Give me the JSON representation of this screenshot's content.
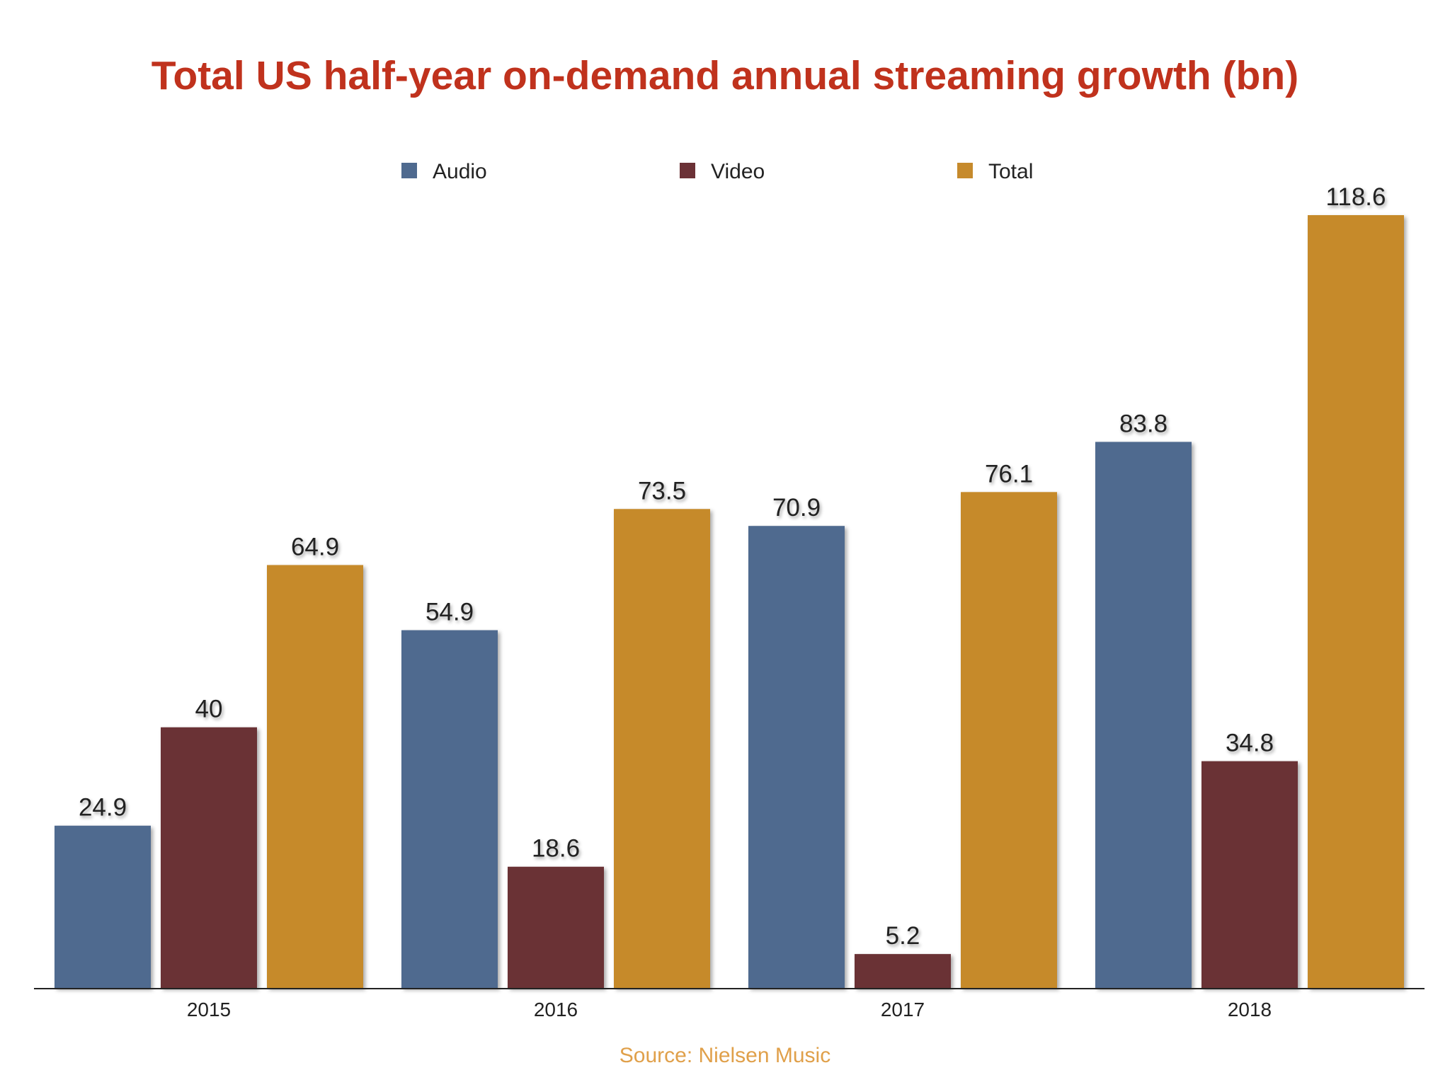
{
  "chart_data": {
    "type": "bar",
    "title": "Total US half-year on-demand annual streaming growth (bn)",
    "categories": [
      "2015",
      "2016",
      "2017",
      "2018"
    ],
    "series": [
      {
        "name": "Audio",
        "values": [
          24.9,
          54.9,
          70.9,
          83.8
        ],
        "color": "#4f6a8f"
      },
      {
        "name": "Video",
        "values": [
          40,
          18.6,
          5.2,
          34.8
        ],
        "color": "#6b3136"
      },
      {
        "name": "Total",
        "values": [
          64.9,
          73.5,
          76.1,
          118.6
        ],
        "color": "#c68a2c"
      }
    ],
    "value_labels": [
      [
        "24.9",
        "40",
        "64.9"
      ],
      [
        "54.9",
        "18.6",
        "73.5"
      ],
      [
        "70.9",
        "5.2",
        "76.1"
      ],
      [
        "83.8",
        "34.8",
        "118.6"
      ]
    ],
    "ylim": [
      0,
      120
    ],
    "xlabel": "",
    "ylabel": "",
    "grid": false,
    "legend_position": "top",
    "source": "Source: Nielsen Music",
    "colors": {
      "title": "#c0321d",
      "source": "#e0a04a",
      "axis": "#222222",
      "label": "#222222"
    }
  }
}
